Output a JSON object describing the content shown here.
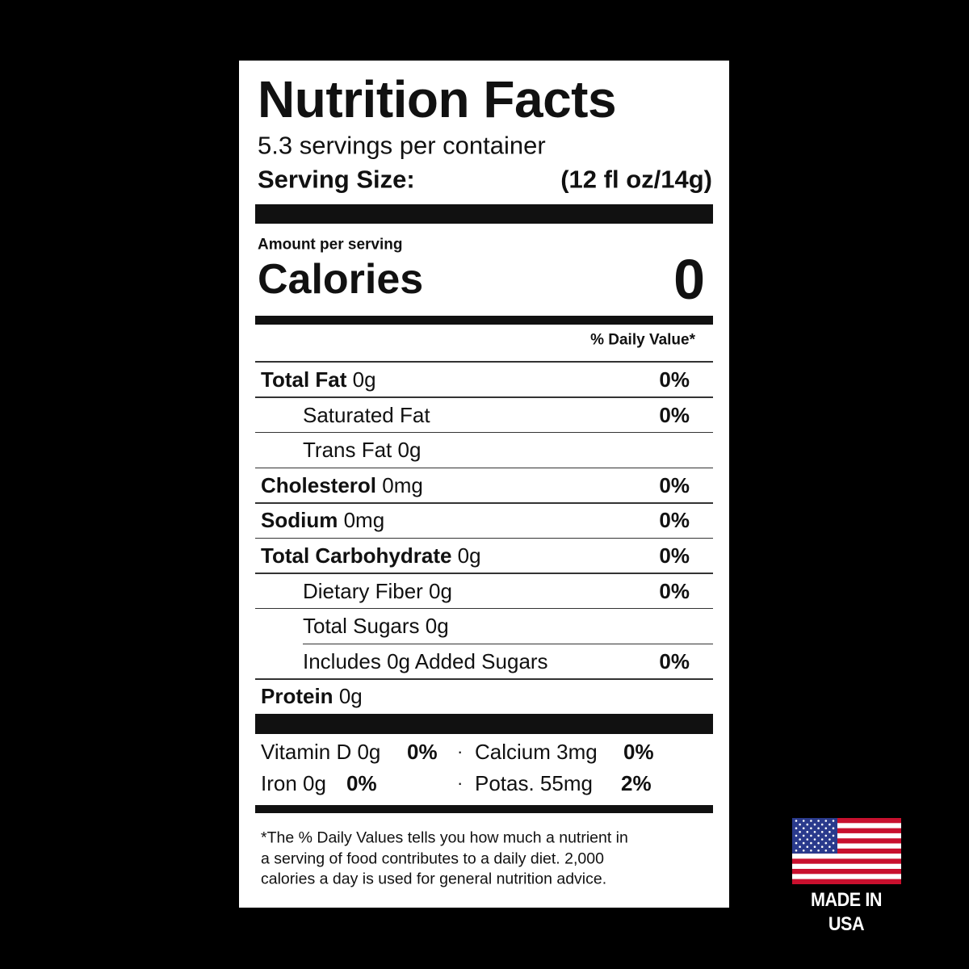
{
  "label": {
    "title": "Nutrition Facts",
    "servings": "5.3 servings per container",
    "serving_size": {
      "label": "Serving Size:",
      "value": "(12 fl oz/14g)"
    },
    "amount_per_serving": "Amount per serving",
    "calories": {
      "label": "Calories",
      "value": "0"
    },
    "daily_value_header": "% Daily Value*",
    "rows": [
      {
        "name": "Total Fat",
        "amount": "0g",
        "dv": "0%"
      },
      {
        "text": "Saturated Fat",
        "dv": "0%"
      },
      {
        "text": "Trans Fat 0g"
      },
      {
        "name": "Cholesterol",
        "amount": "0mg",
        "dv": "0%"
      },
      {
        "name": "Sodium",
        "amount": "0mg",
        "dv": "0%"
      },
      {
        "name": "Total Carbohydrate",
        "amount": "0g",
        "dv": "0%"
      },
      {
        "text": "Dietary Fiber 0g",
        "dv": "0%"
      },
      {
        "text": "Total Sugars 0g"
      },
      {
        "text": "Includes 0g Added Sugars",
        "dv": "0%"
      },
      {
        "name": "Protein",
        "amount": "0g"
      }
    ],
    "vitamins": [
      {
        "text": "Vitamin D 0g",
        "dv": "0%"
      },
      {
        "text": "Calcium 3mg",
        "dv": "0%"
      },
      {
        "text": "Iron 0g",
        "dv": "0%"
      },
      {
        "text": "Potas. 55mg",
        "dv": "2%"
      }
    ],
    "footnote": [
      "*The % Daily Values tells you how much a nutrient in",
      "a serving of food contributes to a daily diet. 2,000",
      "calories a day is used for general nutrition advice."
    ]
  },
  "badge": "MADE IN USA"
}
